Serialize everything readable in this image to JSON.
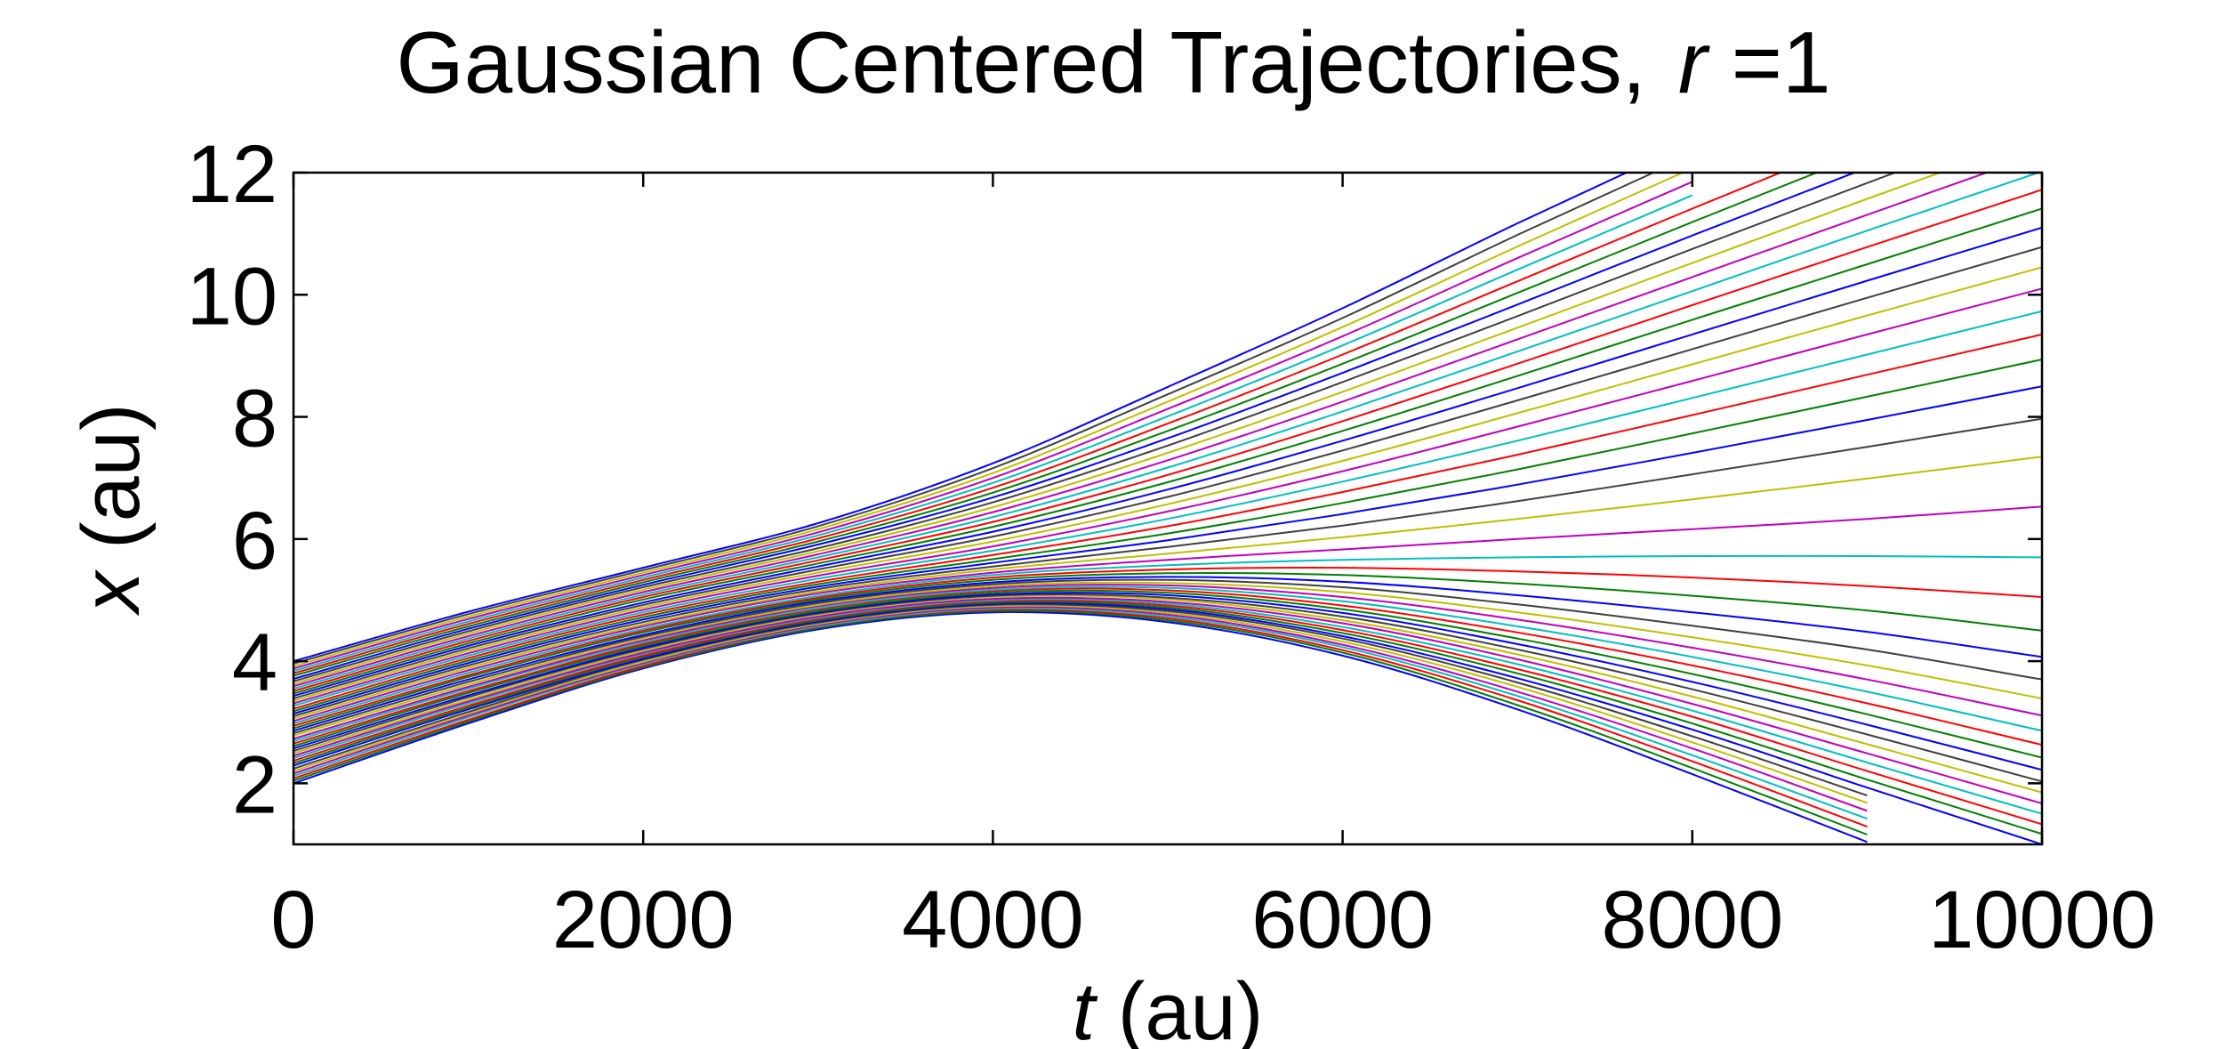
{
  "chart_data": {
    "type": "line",
    "title": {
      "prefix": "Gaussian Centered Trajectories,",
      "var": "r",
      "suffix": " =1"
    },
    "xlabel": {
      "var": "t",
      "unit": " (au)"
    },
    "ylabel": {
      "var": "x",
      "unit": " (au)"
    },
    "xlim": [
      0,
      10000
    ],
    "ylim": [
      1,
      12
    ],
    "xticks": [
      0,
      2000,
      4000,
      6000,
      8000,
      10000
    ],
    "yticks": [
      2,
      4,
      6,
      8,
      10,
      12
    ],
    "xtick_labels": [
      "0",
      "2000",
      "4000",
      "6000",
      "8000",
      "10000"
    ],
    "ytick_labels": [
      "2",
      "4",
      "6",
      "8",
      "10",
      "12"
    ],
    "grid": false,
    "color_cycle": [
      "#0000ff",
      "#008000",
      "#ff0000",
      "#00bfbf",
      "#bf00bf",
      "#bfbf00",
      "#404040"
    ],
    "x": [
      0,
      1000,
      2000,
      3000,
      4000,
      5000,
      6000,
      7000,
      8000,
      9000,
      10000
    ],
    "series": [
      {
        "values": [
          2.0,
          2.98,
          3.88,
          4.52,
          4.8,
          4.64,
          4.09,
          3.21,
          2.15,
          1.04,
          null
        ]
      },
      {
        "values": [
          2.04,
          3.01,
          3.9,
          4.54,
          4.82,
          4.67,
          4.14,
          3.28,
          2.25,
          1.16,
          null
        ]
      },
      {
        "values": [
          2.08,
          3.04,
          3.92,
          4.56,
          4.84,
          4.7,
          4.18,
          3.36,
          2.36,
          1.29,
          null
        ]
      },
      {
        "values": [
          2.12,
          3.08,
          3.95,
          4.57,
          4.86,
          4.73,
          4.23,
          3.43,
          2.46,
          1.42,
          null
        ]
      },
      {
        "values": [
          2.16,
          3.11,
          3.97,
          4.59,
          4.88,
          4.76,
          4.27,
          3.5,
          2.57,
          1.55,
          null
        ]
      },
      {
        "values": [
          2.2,
          3.14,
          3.99,
          4.61,
          4.9,
          4.79,
          4.32,
          3.58,
          2.67,
          1.68,
          null
        ]
      },
      {
        "values": [
          2.24,
          3.17,
          4.02,
          4.63,
          4.92,
          4.82,
          4.37,
          3.65,
          2.77,
          1.8,
          null
        ]
      },
      {
        "values": [
          2.29,
          3.21,
          4.04,
          4.65,
          4.94,
          4.85,
          4.41,
          3.72,
          2.88,
          1.93,
          1.0
        ]
      },
      {
        "values": [
          2.33,
          3.24,
          4.07,
          4.67,
          4.96,
          4.88,
          4.46,
          3.8,
          2.98,
          2.06,
          1.17
        ]
      },
      {
        "values": [
          2.37,
          3.27,
          4.09,
          4.69,
          4.98,
          4.91,
          4.51,
          3.87,
          3.09,
          2.2,
          1.33
        ]
      },
      {
        "values": [
          2.41,
          3.31,
          4.12,
          4.71,
          5.0,
          4.94,
          4.56,
          3.95,
          3.19,
          2.34,
          1.5
        ]
      },
      {
        "values": [
          2.45,
          3.34,
          4.14,
          4.73,
          5.02,
          4.97,
          4.62,
          4.03,
          3.3,
          2.49,
          1.67
        ]
      },
      {
        "values": [
          2.49,
          3.37,
          4.17,
          4.76,
          5.05,
          5.01,
          4.67,
          4.11,
          3.42,
          2.64,
          1.85
        ]
      },
      {
        "values": [
          2.53,
          3.41,
          4.2,
          4.78,
          5.07,
          5.04,
          4.73,
          4.19,
          3.54,
          2.8,
          2.03
        ]
      },
      {
        "values": [
          2.57,
          3.44,
          4.22,
          4.8,
          5.09,
          5.08,
          4.79,
          4.28,
          3.66,
          2.96,
          2.22
        ]
      },
      {
        "values": [
          2.61,
          3.48,
          4.25,
          4.82,
          5.12,
          5.12,
          4.85,
          4.37,
          3.79,
          3.13,
          2.42
        ]
      },
      {
        "values": [
          2.65,
          3.51,
          4.28,
          4.85,
          5.15,
          5.16,
          4.91,
          4.47,
          3.93,
          3.31,
          2.63
        ]
      },
      {
        "values": [
          2.69,
          3.55,
          4.31,
          4.87,
          5.17,
          5.2,
          4.98,
          4.57,
          4.07,
          3.5,
          2.86
        ]
      },
      {
        "values": [
          2.73,
          3.58,
          4.34,
          4.9,
          5.2,
          5.24,
          5.05,
          4.68,
          4.22,
          3.7,
          3.11
        ]
      },
      {
        "values": [
          2.78,
          3.62,
          4.37,
          4.92,
          5.23,
          5.28,
          5.13,
          4.8,
          4.39,
          3.93,
          3.39
        ]
      },
      {
        "values": [
          2.82,
          3.66,
          4.4,
          4.95,
          5.26,
          5.33,
          5.21,
          4.93,
          4.58,
          4.19,
          3.7
        ]
      },
      {
        "values": [
          2.86,
          3.7,
          4.43,
          4.98,
          5.29,
          5.38,
          5.3,
          5.08,
          4.8,
          4.48,
          4.07
        ]
      },
      {
        "values": [
          2.9,
          3.74,
          4.47,
          5.01,
          5.33,
          5.44,
          5.41,
          5.27,
          5.07,
          4.83,
          4.5
        ]
      },
      {
        "values": [
          2.94,
          3.77,
          4.5,
          5.04,
          5.37,
          5.5,
          5.53,
          5.47,
          5.37,
          5.23,
          5.05
        ]
      },
      {
        "values": [
          2.98,
          3.81,
          4.53,
          5.07,
          5.41,
          5.57,
          5.66,
          5.7,
          5.72,
          5.72,
          5.7
        ]
      },
      {
        "values": [
          3.02,
          3.85,
          4.57,
          5.11,
          5.45,
          5.66,
          5.83,
          6.0,
          6.16,
          6.33,
          6.53
        ]
      },
      {
        "values": [
          3.06,
          3.89,
          4.6,
          5.14,
          5.5,
          5.76,
          6.03,
          6.33,
          6.65,
          6.99,
          7.35
        ]
      },
      {
        "values": [
          3.1,
          3.93,
          4.64,
          5.18,
          5.55,
          5.87,
          6.22,
          6.62,
          7.06,
          7.51,
          7.97
        ]
      },
      {
        "values": [
          3.14,
          3.97,
          4.68,
          5.22,
          5.61,
          5.98,
          6.41,
          6.89,
          7.41,
          7.95,
          8.5
        ]
      },
      {
        "values": [
          3.18,
          4.01,
          4.72,
          5.26,
          5.67,
          6.09,
          6.59,
          7.14,
          7.73,
          8.33,
          8.94
        ]
      },
      {
        "values": [
          3.22,
          4.05,
          4.76,
          5.3,
          5.74,
          6.21,
          6.77,
          7.38,
          8.03,
          8.69,
          9.35
        ]
      },
      {
        "values": [
          3.27,
          4.09,
          4.8,
          5.35,
          5.81,
          6.33,
          6.94,
          7.61,
          8.31,
          9.02,
          9.73
        ]
      },
      {
        "values": [
          3.31,
          4.13,
          4.84,
          5.4,
          5.88,
          6.45,
          7.11,
          7.84,
          8.59,
          9.35,
          10.1
        ]
      },
      {
        "values": [
          3.35,
          4.17,
          4.88,
          5.45,
          5.96,
          6.57,
          7.28,
          8.06,
          8.86,
          9.66,
          10.45
        ]
      },
      {
        "values": [
          3.39,
          4.21,
          4.92,
          5.5,
          6.04,
          6.69,
          7.45,
          8.27,
          9.11,
          9.95,
          10.78
        ]
      },
      {
        "values": [
          3.43,
          4.25,
          4.96,
          5.55,
          6.12,
          6.81,
          7.61,
          8.47,
          9.35,
          10.23,
          11.1
        ]
      },
      {
        "values": [
          3.47,
          4.29,
          5.01,
          5.6,
          6.2,
          6.93,
          7.77,
          8.67,
          9.59,
          10.5,
          11.41
        ]
      },
      {
        "values": [
          3.51,
          4.33,
          5.05,
          5.65,
          6.28,
          7.05,
          7.93,
          8.87,
          9.83,
          10.78,
          11.72
        ]
      },
      {
        "values": [
          3.55,
          4.37,
          5.09,
          5.7,
          6.36,
          7.17,
          8.09,
          9.07,
          10.06,
          11.05,
          12.02
        ]
      },
      {
        "values": [
          3.59,
          4.41,
          5.13,
          5.75,
          6.44,
          7.29,
          8.25,
          9.27,
          10.29,
          11.31,
          12.32
        ]
      },
      {
        "values": [
          3.63,
          4.45,
          5.17,
          5.8,
          6.52,
          7.41,
          8.41,
          9.46,
          10.52,
          11.57,
          12.6
        ]
      },
      {
        "values": [
          3.67,
          4.49,
          5.21,
          5.85,
          6.6,
          7.53,
          8.57,
          9.65,
          10.75,
          11.83,
          12.9
        ]
      },
      {
        "values": [
          3.71,
          4.53,
          5.25,
          5.91,
          6.68,
          7.65,
          8.72,
          9.84,
          10.97,
          12.08,
          null
        ]
      },
      {
        "values": [
          3.76,
          4.57,
          5.29,
          5.96,
          6.76,
          7.77,
          8.87,
          10.03,
          11.19,
          12.33,
          null
        ]
      },
      {
        "values": [
          3.8,
          4.61,
          5.33,
          6.01,
          6.84,
          7.89,
          9.02,
          10.22,
          11.41,
          12.58,
          null
        ]
      },
      {
        "values": [
          3.84,
          4.65,
          5.37,
          6.06,
          6.92,
          8.01,
          9.17,
          10.41,
          11.63,
          null,
          null
        ]
      },
      {
        "values": [
          3.88,
          4.69,
          5.41,
          6.11,
          7.0,
          8.13,
          9.32,
          10.6,
          11.85,
          null,
          null
        ]
      },
      {
        "values": [
          3.92,
          4.73,
          5.45,
          6.16,
          7.08,
          8.25,
          9.47,
          10.79,
          12.07,
          null,
          null
        ]
      },
      {
        "values": [
          3.96,
          4.77,
          5.49,
          6.21,
          7.16,
          8.37,
          9.62,
          10.98,
          12.29,
          null,
          null
        ]
      },
      {
        "values": [
          4.0,
          4.81,
          5.53,
          6.26,
          7.24,
          8.49,
          9.78,
          11.17,
          12.5,
          null,
          null
        ]
      }
    ]
  }
}
